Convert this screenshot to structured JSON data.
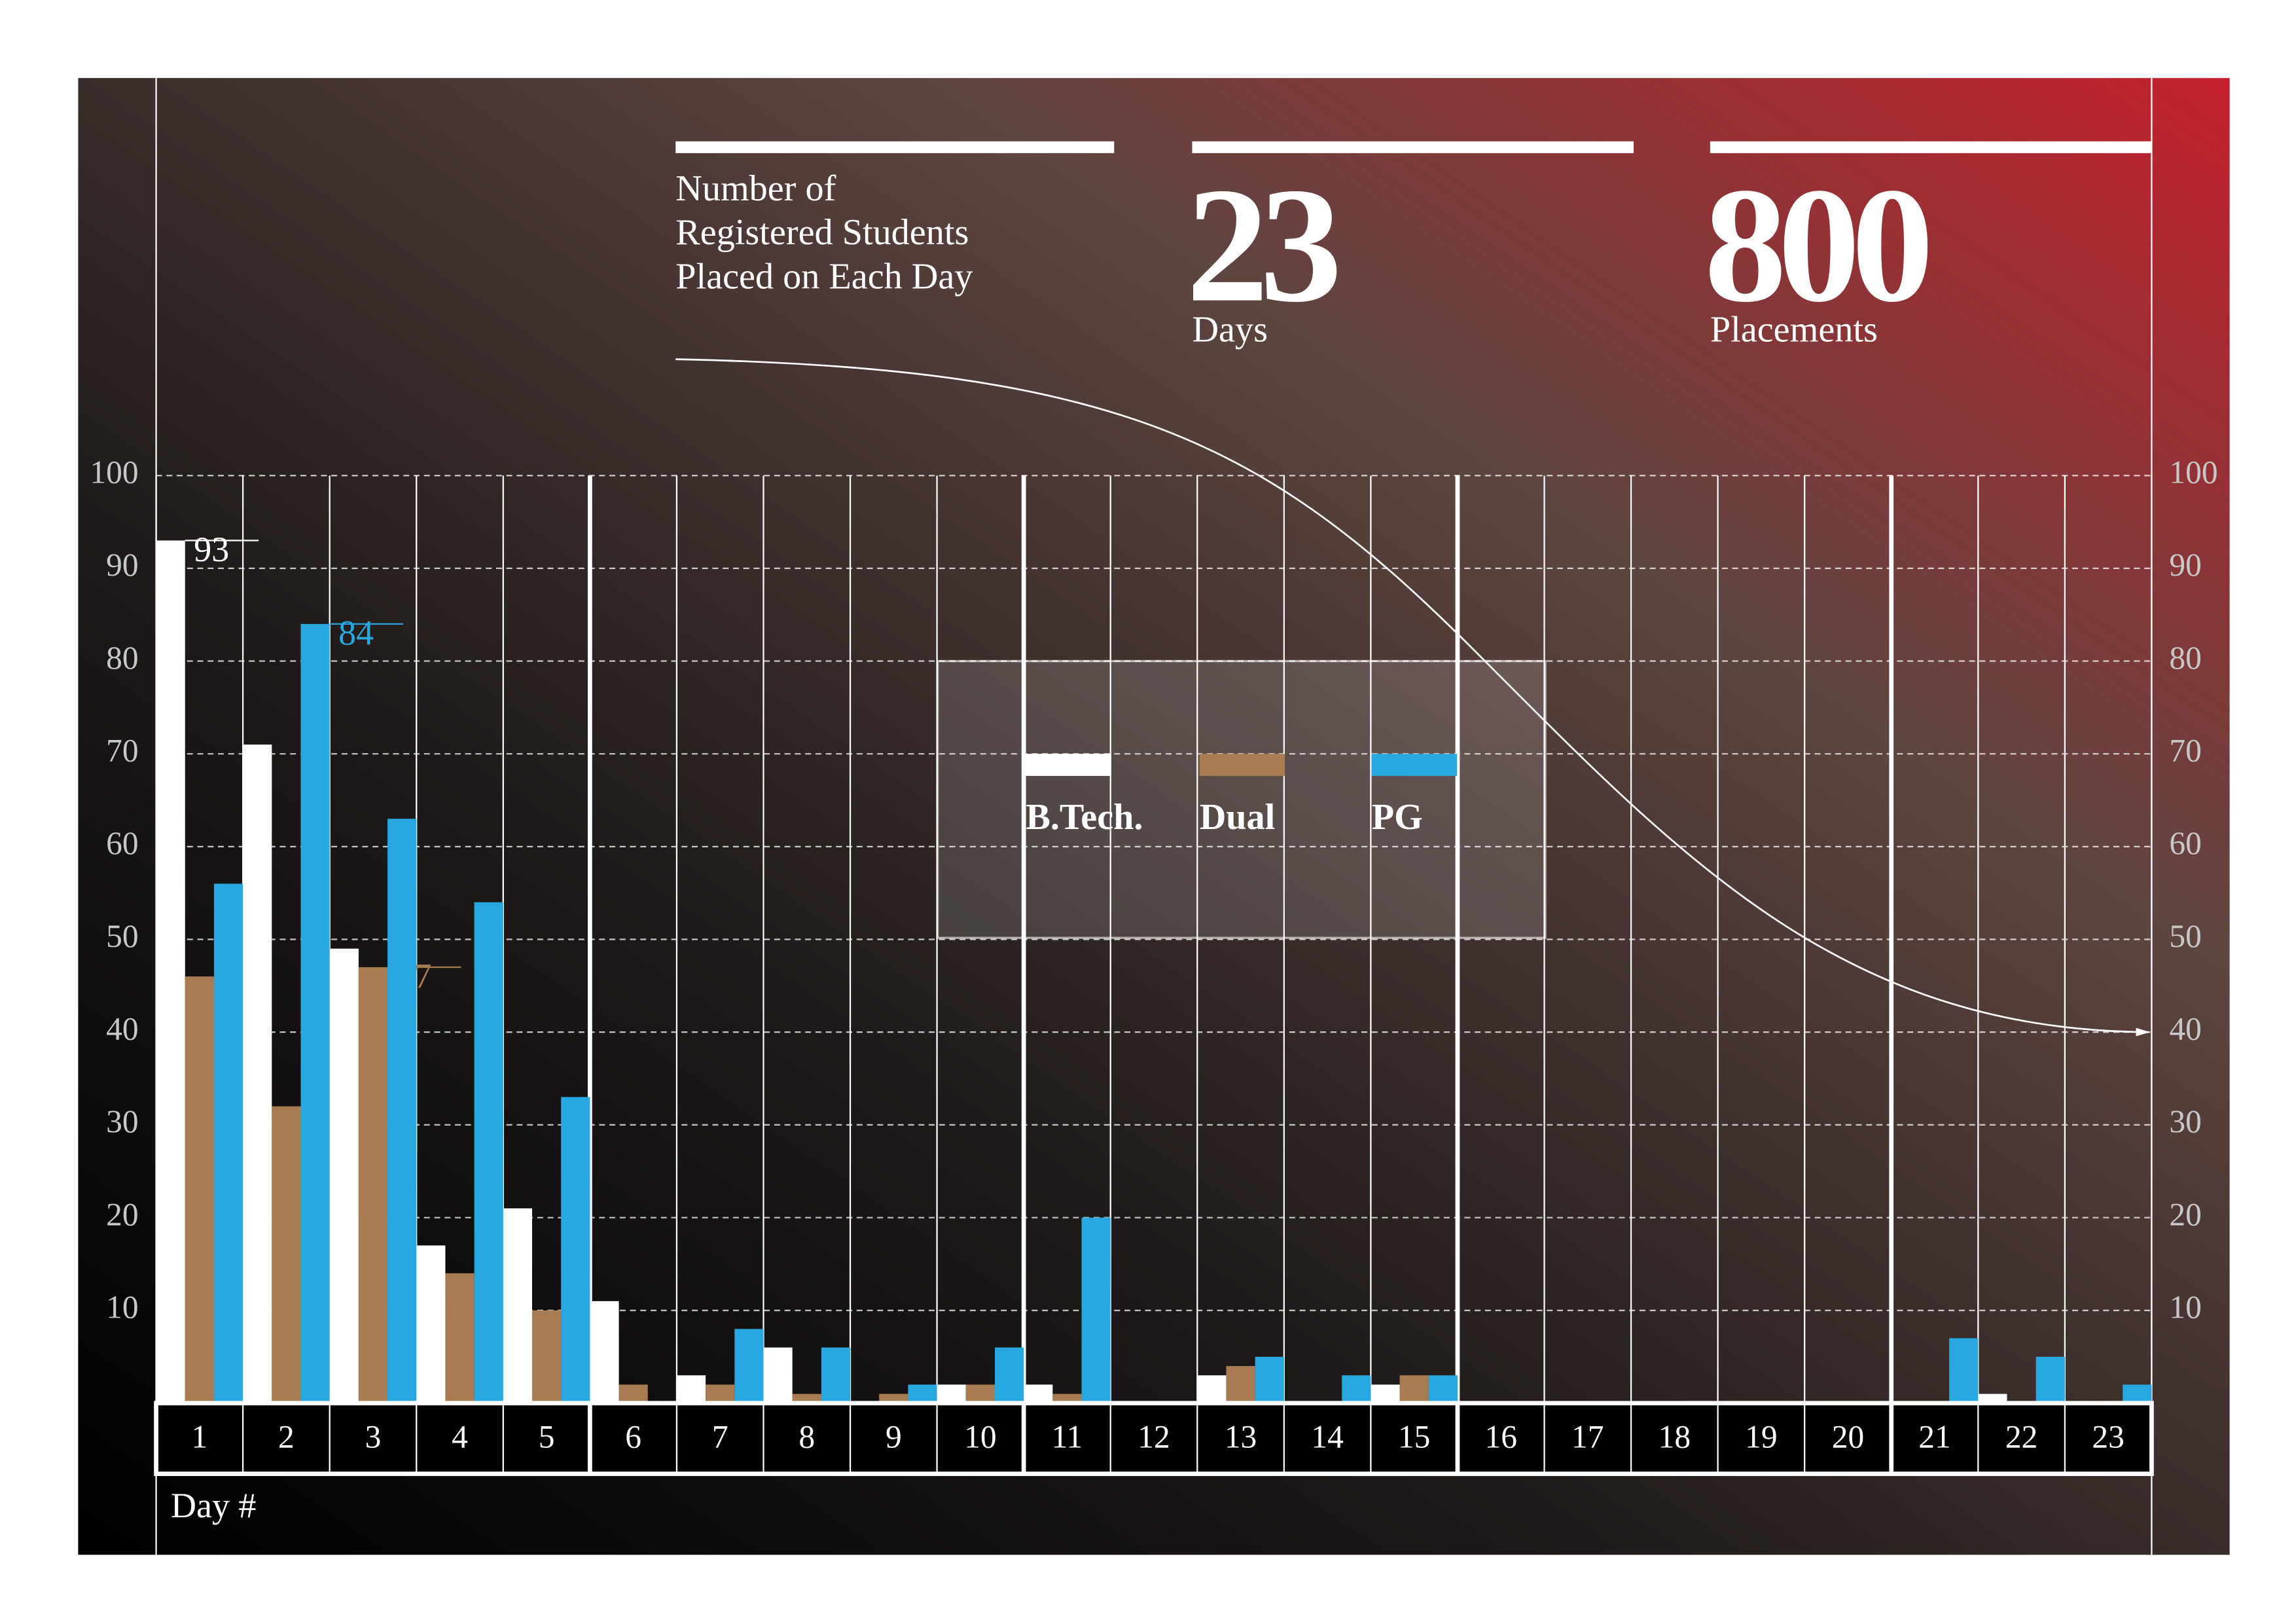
{
  "chart_data": {
    "type": "bar",
    "title": "Number of Registered Students Placed on Each Day",
    "stats": [
      {
        "value": "23",
        "label": "Days"
      },
      {
        "value": "800",
        "label": "Placements"
      }
    ],
    "x_label": "Day #",
    "categories": [
      "1",
      "2",
      "3",
      "4",
      "5",
      "6",
      "7",
      "8",
      "9",
      "10",
      "11",
      "12",
      "13",
      "14",
      "15",
      "16",
      "17",
      "18",
      "19",
      "20",
      "21",
      "22",
      "23"
    ],
    "series": [
      {
        "name": "B.Tech.",
        "color": "#ffffff",
        "values": [
          93,
          71,
          49,
          17,
          21,
          11,
          3,
          6,
          0,
          2,
          2,
          0,
          3,
          0,
          2,
          0,
          0,
          0,
          0,
          0,
          0,
          1,
          0
        ],
        "value_labels": [
          "93",
          null,
          null,
          null,
          null,
          null,
          null,
          null,
          null,
          null,
          null,
          null,
          null,
          null,
          null,
          null,
          null,
          null,
          null,
          null,
          null,
          null,
          null
        ]
      },
      {
        "name": "Dual",
        "color": "#a87c52",
        "values": [
          46,
          32,
          47,
          14,
          10,
          2,
          2,
          1,
          1,
          2,
          1,
          0,
          4,
          0,
          3,
          0,
          0,
          0,
          0,
          0,
          0,
          0,
          0
        ],
        "value_labels": [
          null,
          null,
          "47",
          null,
          null,
          null,
          null,
          null,
          null,
          null,
          null,
          null,
          null,
          null,
          null,
          null,
          null,
          null,
          null,
          null,
          null,
          null,
          null
        ]
      },
      {
        "name": "PG",
        "color": "#29a8e0",
        "values": [
          56,
          84,
          63,
          54,
          33,
          0,
          8,
          6,
          2,
          6,
          20,
          0,
          5,
          3,
          3,
          0,
          0,
          0,
          0,
          0,
          7,
          5,
          2
        ],
        "value_labels": [
          null,
          "84",
          null,
          null,
          null,
          null,
          null,
          null,
          null,
          null,
          null,
          null,
          null,
          null,
          null,
          null,
          null,
          null,
          null,
          null,
          null,
          null,
          null
        ]
      }
    ],
    "ylim": [
      0,
      100
    ],
    "yticks": [
      10,
      20,
      30,
      40,
      50,
      60,
      70,
      80,
      90,
      100
    ],
    "grid": true
  }
}
